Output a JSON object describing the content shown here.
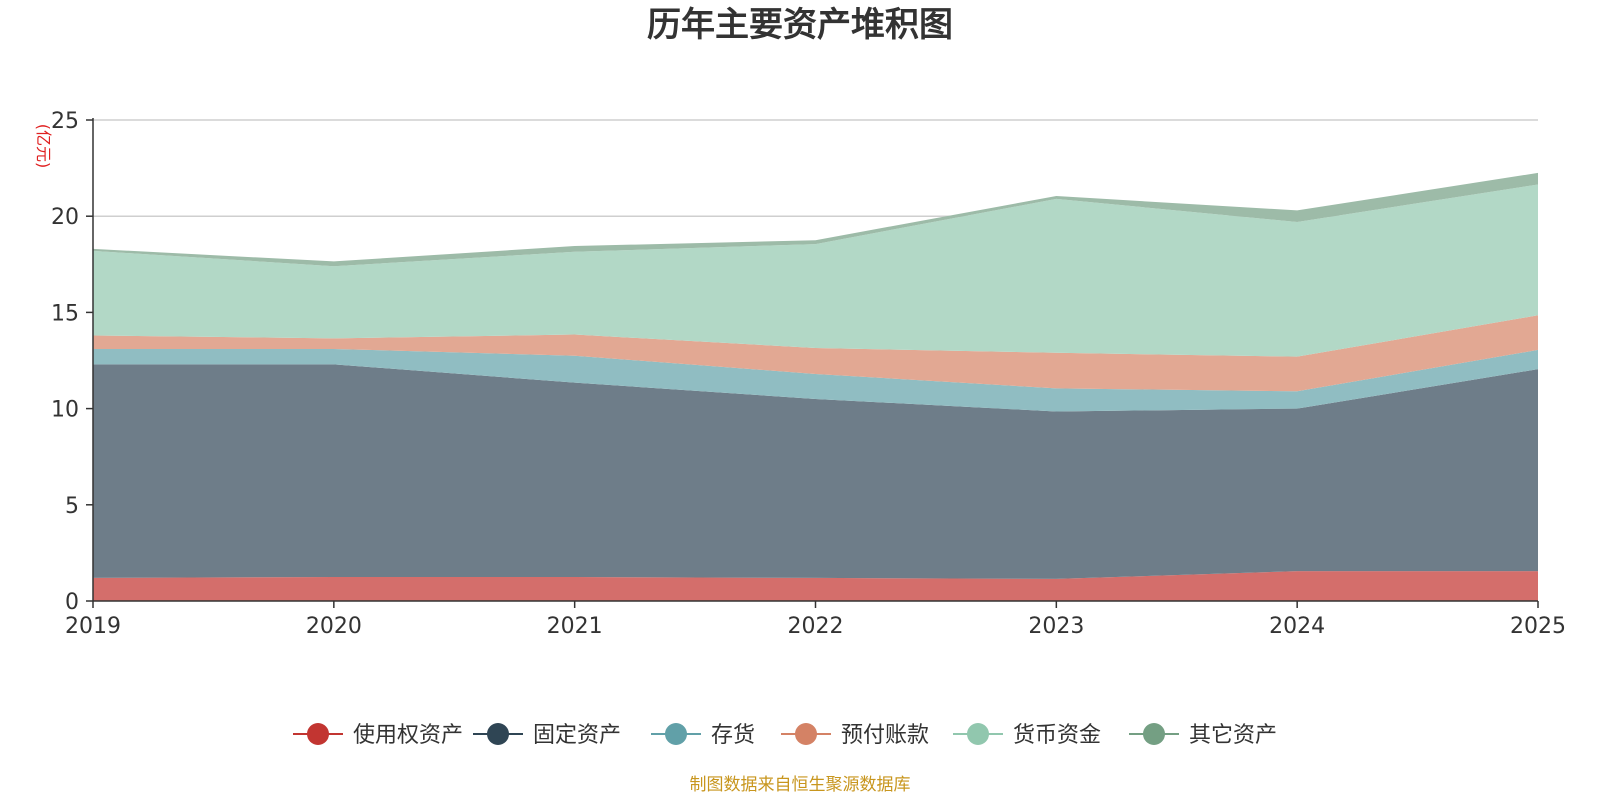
{
  "chart_data": {
    "type": "area",
    "stacked": true,
    "title": "历年主要资产堆积图",
    "unit_label": "(亿元)",
    "categories": [
      "2019",
      "2020",
      "2021",
      "2022",
      "2023",
      "2024",
      "2025"
    ],
    "ylim": [
      0,
      25
    ],
    "yticks": [
      "0",
      "5",
      "10",
      "15",
      "20",
      "25"
    ],
    "grid": true,
    "legend_position": "bottom",
    "series": [
      {
        "name": "使用权资产",
        "color": "#c23531",
        "fill": "#d46e6b",
        "values": [
          1.2,
          1.25,
          1.25,
          1.2,
          1.15,
          1.55,
          1.55
        ]
      },
      {
        "name": "固定资产",
        "color": "#2f4554",
        "fill": "#6e7d89",
        "values": [
          11.1,
          11.05,
          10.1,
          9.3,
          8.7,
          8.45,
          10.5
        ]
      },
      {
        "name": "存货",
        "color": "#61a0a8",
        "fill": "#90bdc2",
        "values": [
          0.8,
          0.8,
          1.4,
          1.3,
          1.2,
          0.9,
          1.0
        ]
      },
      {
        "name": "预付账款",
        "color": "#d48265",
        "fill": "#e2a893",
        "values": [
          0.7,
          0.55,
          1.1,
          1.35,
          1.85,
          1.8,
          1.8
        ]
      },
      {
        "name": "货币资金",
        "color": "#91c7ae",
        "fill": "#b2d8c6",
        "values": [
          4.4,
          3.75,
          4.3,
          5.4,
          8.0,
          7.0,
          6.8
        ]
      },
      {
        "name": "其它资产",
        "color": "#749f83",
        "fill": "#9dbba8",
        "values": [
          0.1,
          0.25,
          0.3,
          0.2,
          0.15,
          0.6,
          0.6
        ]
      }
    ]
  },
  "footer": {
    "source": "制图数据来自恒生聚源数据库"
  }
}
